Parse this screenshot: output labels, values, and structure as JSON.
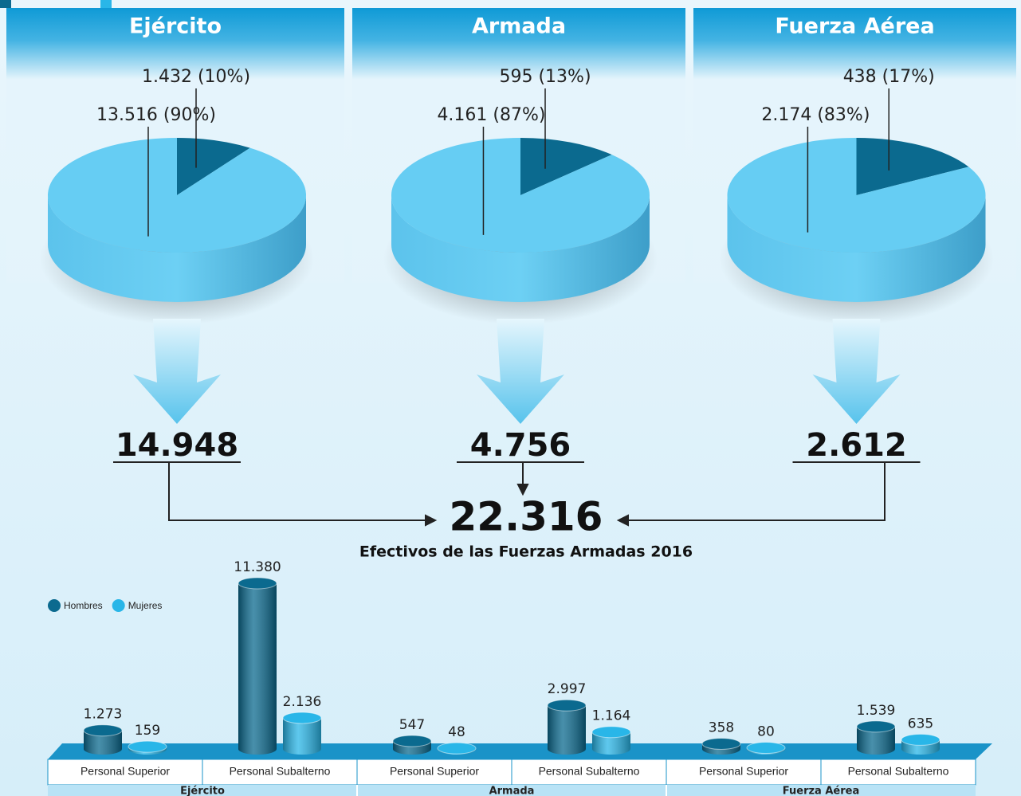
{
  "chart_data": [
    {
      "type": "pie",
      "title": "Ejército",
      "values": [
        1432,
        13516
      ],
      "value_labels": [
        "1.432 (10%)",
        "13.516 (90%)"
      ],
      "colors": [
        "#0b6a8f",
        "#66cdf3"
      ],
      "total": "14.948"
    },
    {
      "type": "pie",
      "title": "Armada",
      "values": [
        595,
        4161
      ],
      "value_labels": [
        "595 (13%)",
        "4.161 (87%)"
      ],
      "colors": [
        "#0b6a8f",
        "#66cdf3"
      ],
      "total": "4.756"
    },
    {
      "type": "pie",
      "title": "Fuerza Aérea",
      "values": [
        438,
        2174
      ],
      "value_labels": [
        "438 (17%)",
        "2.174 (83%)"
      ],
      "colors": [
        "#0b6a8f",
        "#66cdf3"
      ],
      "total": "2.612"
    },
    {
      "type": "bar",
      "categories": [
        "Personal Superior",
        "Personal Subalterno",
        "Personal Superior",
        "Personal Subalterno",
        "Personal Superior",
        "Personal Subalterno"
      ],
      "groups": [
        "Ejército",
        "Armada",
        "Fuerza Aérea"
      ],
      "series": [
        {
          "name": "Hombres",
          "color": "#0b6a8f",
          "values": [
            1273,
            11380,
            547,
            2997,
            358,
            1539
          ],
          "value_labels": [
            "1.273",
            "11.380",
            "547",
            "2.997",
            "358",
            "1.539"
          ]
        },
        {
          "name": "Mujeres",
          "color": "#29b6e8",
          "values": [
            159,
            2136,
            48,
            1164,
            80,
            635
          ],
          "value_labels": [
            "159",
            "2.136",
            "48",
            "1.164",
            "80",
            "635"
          ]
        }
      ]
    }
  ],
  "summary": {
    "total": "22.316",
    "caption": "Efectivos de las Fuerzas Armadas 2016"
  }
}
